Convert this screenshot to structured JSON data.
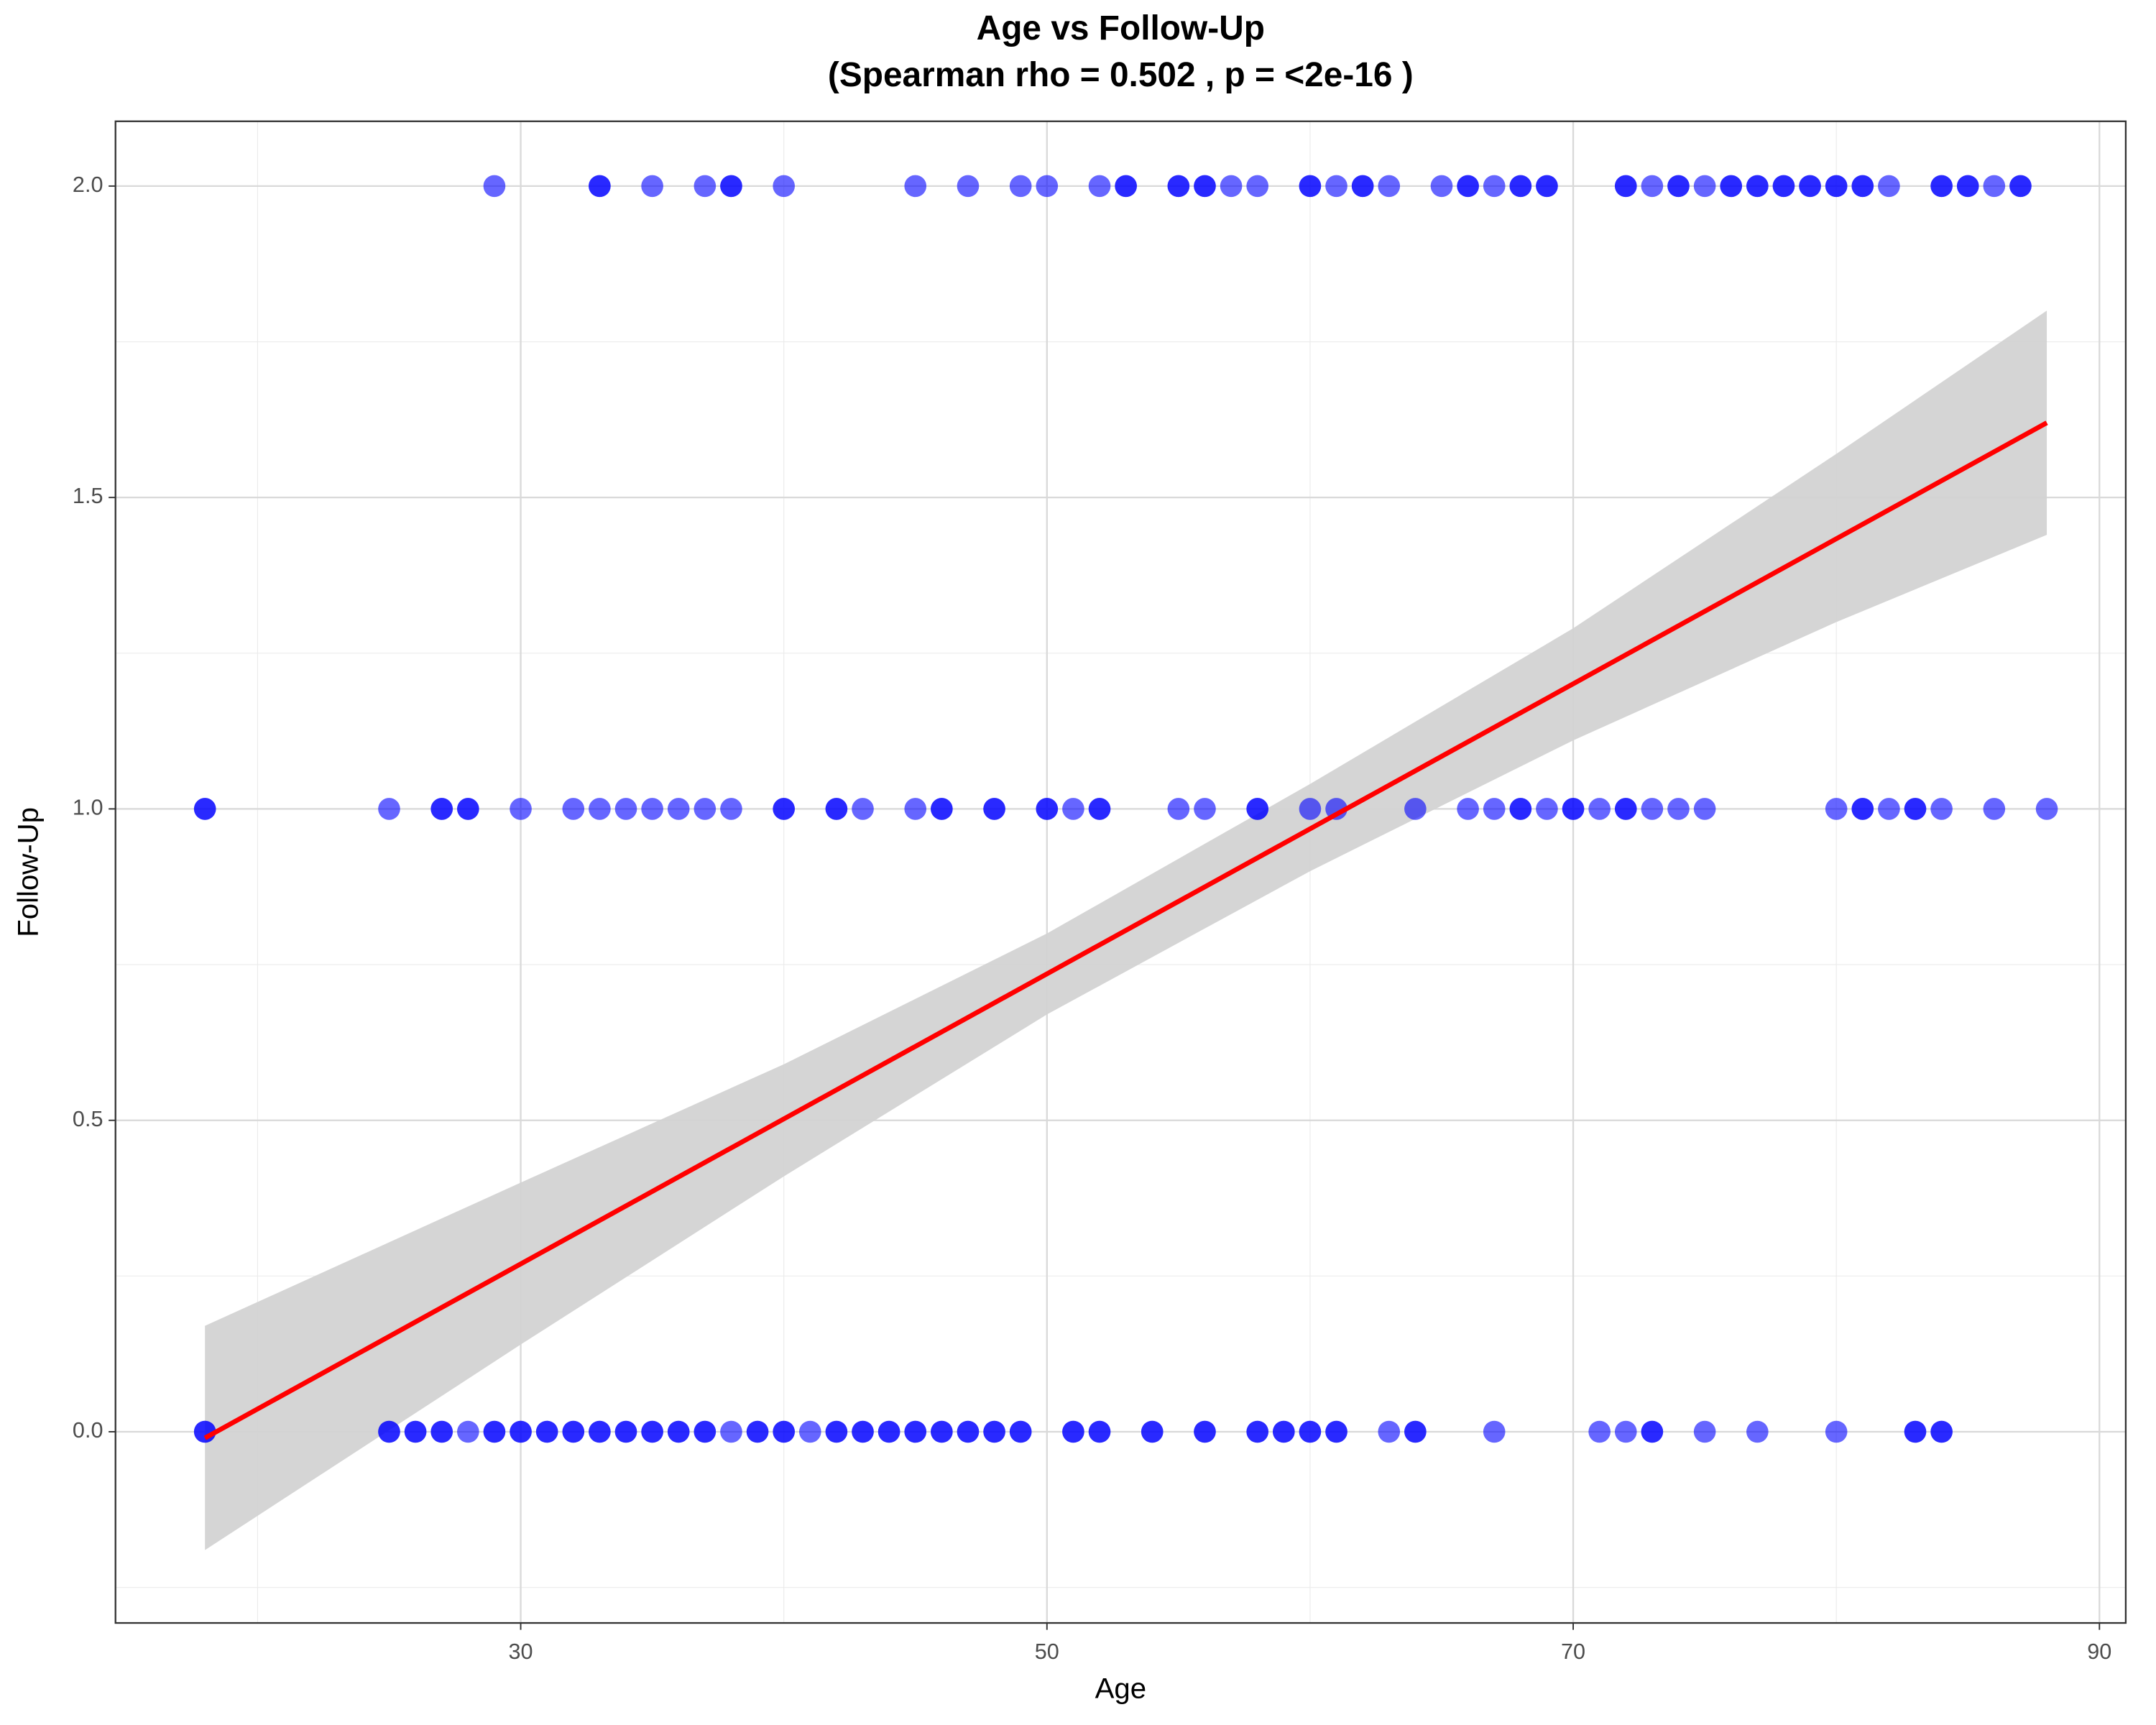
{
  "chart_data": {
    "type": "scatter",
    "title": "Age vs Follow-Up",
    "subtitle": "(Spearman rho = 0.502 , p = <2e-16 )",
    "x_label": "Age",
    "y_label": "Follow-Up",
    "xlim": [
      14.6,
      91.0
    ],
    "ylim": [
      -0.307,
      2.104
    ],
    "xticks": [
      30,
      50,
      70,
      90
    ],
    "yticks": [
      {
        "value": 0,
        "label": "0.0"
      },
      0.5,
      {
        "value": 1,
        "label": "1.0"
      },
      1.5,
      {
        "value": 2,
        "label": "2.0"
      }
    ],
    "x_minor_grid": [
      20,
      40,
      60,
      80
    ],
    "y_minor_grid": [
      -0.25,
      0.25,
      0.75,
      1.25,
      1.75
    ],
    "grid": true,
    "series": [
      {
        "color": "#0000ff",
        "x": [
          29,
          33,
          33,
          35,
          37,
          38,
          38,
          40,
          45,
          47,
          49,
          50,
          52,
          53,
          53,
          55,
          55,
          56,
          56,
          57,
          58,
          60,
          60,
          61,
          62,
          62,
          63,
          65,
          66,
          66,
          67,
          68,
          68,
          69,
          69,
          72,
          72,
          73,
          74,
          74,
          75,
          76,
          76,
          77,
          77,
          78,
          78,
          79,
          79,
          80,
          80,
          81,
          81,
          82,
          84,
          84,
          85,
          85,
          86,
          87,
          87
        ],
        "y": [
          2,
          2,
          2,
          2,
          2,
          2,
          2,
          2,
          2,
          2,
          2,
          2,
          2,
          2,
          2,
          2,
          2,
          2,
          2,
          2,
          2,
          2,
          2,
          2,
          2,
          2,
          2,
          2,
          2,
          2,
          2,
          2,
          2,
          2,
          2,
          2,
          2,
          2,
          2,
          2,
          2,
          2,
          2,
          2,
          2,
          2,
          2,
          2,
          2,
          2,
          2,
          2,
          2,
          2,
          2,
          2,
          2,
          2,
          2,
          2,
          2
        ]
      },
      {
        "color": "#0000ff",
        "x": [
          18,
          18,
          25,
          27,
          27,
          28,
          28,
          30,
          32,
          33,
          34,
          35,
          36,
          37,
          38,
          40,
          40,
          42,
          42,
          43,
          45,
          46,
          46,
          48,
          48,
          50,
          50,
          51,
          52,
          52,
          55,
          56,
          58,
          58,
          60,
          61,
          64,
          66,
          67,
          68,
          68,
          69,
          70,
          70,
          71,
          72,
          72,
          73,
          74,
          75,
          80,
          81,
          81,
          82,
          83,
          83,
          84,
          86,
          88
        ],
        "y": [
          1,
          1,
          1,
          1,
          1,
          1,
          1,
          1,
          1,
          1,
          1,
          1,
          1,
          1,
          1,
          1,
          1,
          1,
          1,
          1,
          1,
          1,
          1,
          1,
          1,
          1,
          1,
          1,
          1,
          1,
          1,
          1,
          1,
          1,
          1,
          1,
          1,
          1,
          1,
          1,
          1,
          1,
          1,
          1,
          1,
          1,
          1,
          1,
          1,
          1,
          1,
          1,
          1,
          1,
          1,
          1,
          1,
          1,
          1
        ]
      },
      {
        "color": "#0000ff",
        "x": [
          18,
          18,
          25,
          25,
          26,
          26,
          27,
          27,
          28,
          29,
          29,
          30,
          30,
          31,
          31,
          32,
          32,
          33,
          33,
          34,
          34,
          35,
          35,
          36,
          36,
          37,
          37,
          38,
          39,
          39,
          40,
          40,
          41,
          42,
          42,
          43,
          43,
          44,
          44,
          45,
          45,
          46,
          46,
          47,
          47,
          48,
          48,
          49,
          49,
          51,
          51,
          52,
          52,
          54,
          54,
          56,
          56,
          58,
          58,
          59,
          59,
          60,
          60,
          61,
          61,
          63,
          64,
          64,
          67,
          71,
          72,
          73,
          73,
          75,
          77,
          80,
          83,
          83,
          84,
          84
        ],
        "y": [
          0,
          0,
          0,
          0,
          0,
          0,
          0,
          0,
          0,
          0,
          0,
          0,
          0,
          0,
          0,
          0,
          0,
          0,
          0,
          0,
          0,
          0,
          0,
          0,
          0,
          0,
          0,
          0,
          0,
          0,
          0,
          0,
          0,
          0,
          0,
          0,
          0,
          0,
          0,
          0,
          0,
          0,
          0,
          0,
          0,
          0,
          0,
          0,
          0,
          0,
          0,
          0,
          0,
          0,
          0,
          0,
          0,
          0,
          0,
          0,
          0,
          0,
          0,
          0,
          0,
          0,
          0,
          0,
          0,
          0,
          0,
          0,
          0,
          0,
          0,
          0,
          0,
          0,
          0,
          0
        ]
      }
    ],
    "fit": {
      "color": "#ff0000",
      "x": [
        18,
        88
      ],
      "y": [
        -0.01,
        1.62
      ]
    },
    "band": {
      "color": "#d3d3d3",
      "x": [
        18,
        30,
        40,
        50,
        60,
        70,
        80,
        88
      ],
      "lower": [
        -0.19,
        0.14,
        0.41,
        0.67,
        0.9,
        1.11,
        1.3,
        1.44
      ],
      "upper": [
        0.17,
        0.4,
        0.59,
        0.8,
        1.04,
        1.29,
        1.57,
        1.8
      ]
    }
  }
}
